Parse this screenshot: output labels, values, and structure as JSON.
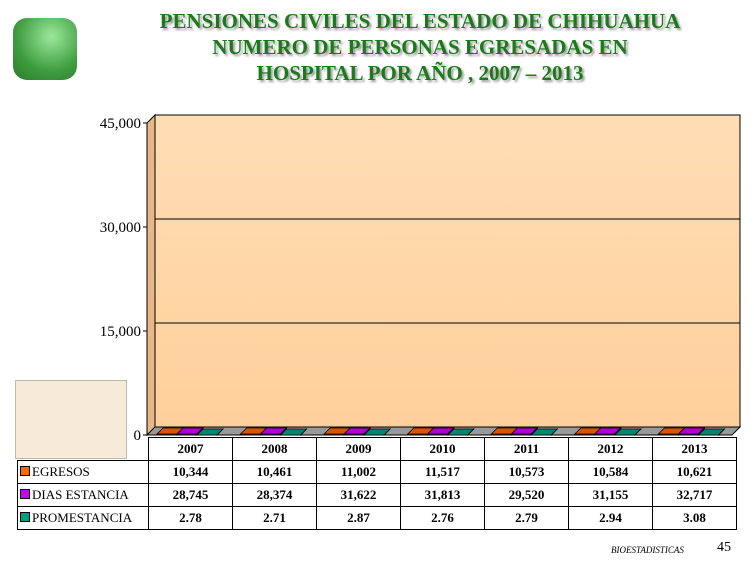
{
  "title": {
    "line1": "PENSIONES  CIVILES  DEL  ESTADO  DE  CHIHUAHUA",
    "line2": "NUMERO DE PERSONAS EGRESADAS EN",
    "line3": "HOSPITAL  POR AÑO ,  2007  –  2013"
  },
  "footer": {
    "source": "BIOESTADISTICAS",
    "page": "45"
  },
  "chart_data": {
    "type": "bar",
    "categories": [
      "2007",
      "2008",
      "2009",
      "2010",
      "2011",
      "2012",
      "2013"
    ],
    "yticks": [
      "0",
      "15,000",
      "30,000",
      "45,000"
    ],
    "ylim": [
      0,
      45000
    ],
    "series": [
      {
        "name": "EGRESOS",
        "color": "#FF6600",
        "values": [
          10344,
          10461,
          11002,
          11517,
          10573,
          10584,
          10621
        ],
        "labels": [
          "10,344",
          "10,461",
          "11,002",
          "11,517",
          "10,573",
          "10,584",
          "10,621"
        ]
      },
      {
        "name": "DIAS ESTANCIA",
        "color": "#CC00FF",
        "values": [
          28745,
          28374,
          31622,
          31813,
          29520,
          31155,
          32717
        ],
        "labels": [
          "28,745",
          "28,374",
          "31,622",
          "31,813",
          "29,520",
          "31,155",
          "32,717"
        ]
      },
      {
        "name": "PROMESTANCIA",
        "color": "#00A080",
        "values": [
          2.78,
          2.71,
          2.87,
          2.76,
          2.79,
          2.94,
          3.08
        ],
        "labels": [
          "2.78",
          "2.71",
          "2.87",
          "2.76",
          "2.79",
          "2.94",
          "3.08"
        ]
      }
    ]
  }
}
